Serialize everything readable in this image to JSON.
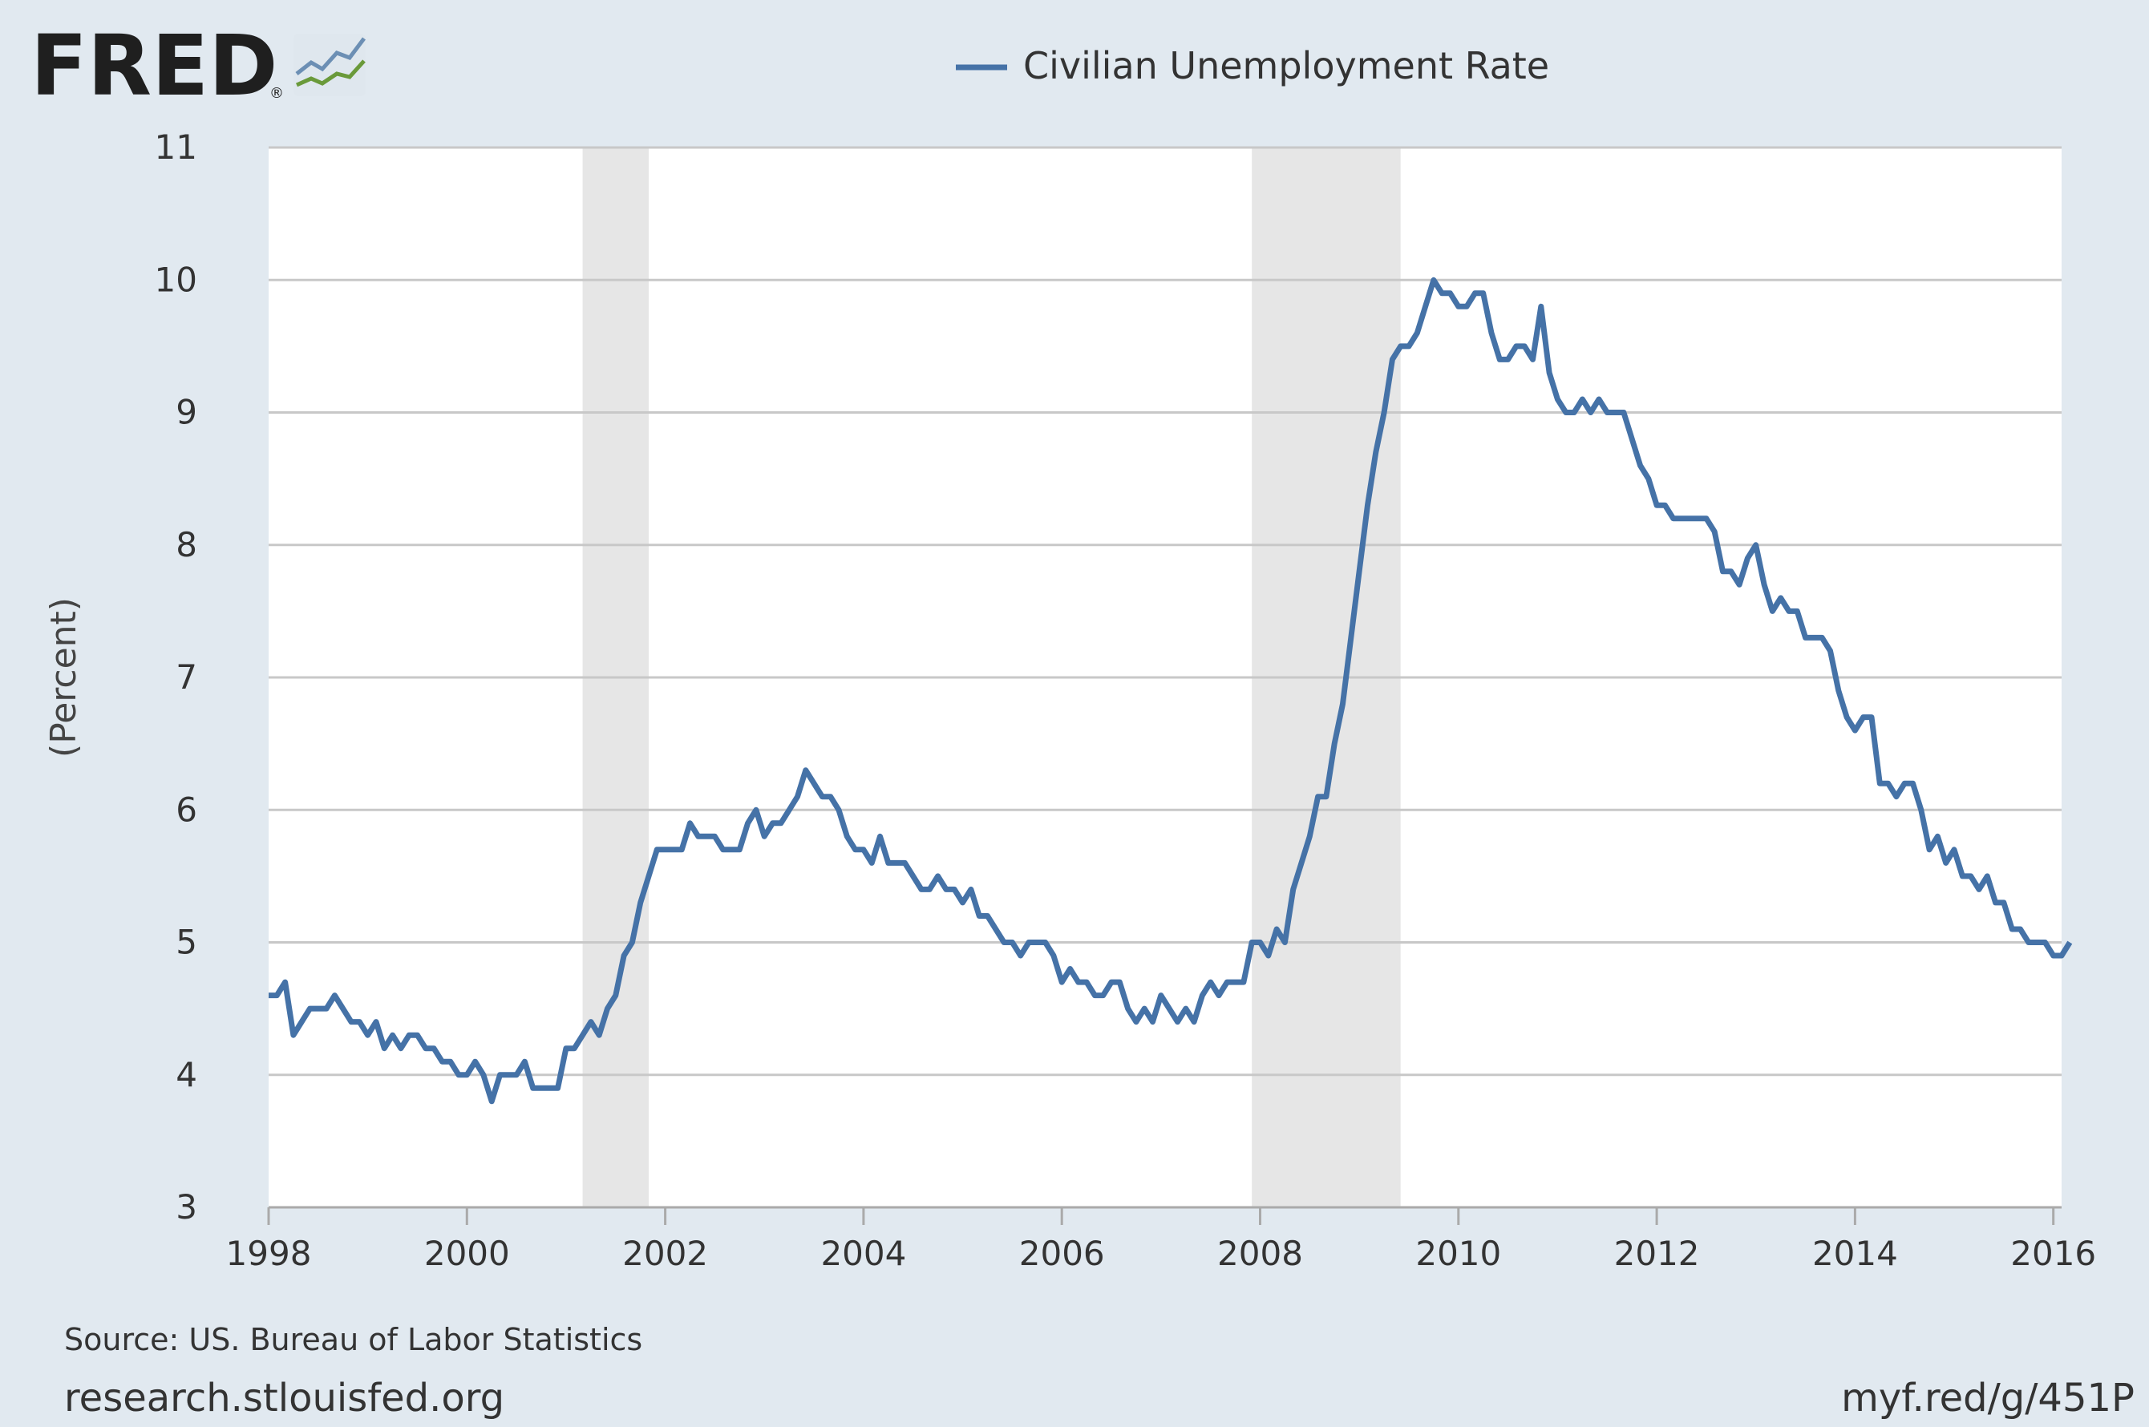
{
  "logo": {
    "text": "FRED",
    "reg_mark": "®",
    "icon": "fred-chart-logo-icon"
  },
  "legend": {
    "label": "Civilian Unemployment Rate",
    "color": "#4572a7"
  },
  "footer": {
    "source": "Source: US. Bureau of Labor Statistics",
    "site": "research.stlouisfed.org",
    "short_link": "myf.red/g/451P"
  },
  "colors": {
    "background": "#e1e9f0",
    "plot_background": "#ffffff",
    "gridline": "#c8c8c8",
    "recession": "#e6e6e6",
    "series": "#4572a7"
  },
  "chart_data": {
    "type": "line",
    "title": "",
    "xlabel": "",
    "ylabel": "(Percent)",
    "xlim": [
      "1998-01",
      "2016-02"
    ],
    "ylim": [
      3,
      11
    ],
    "grid": true,
    "legend_position": "top-center",
    "y_ticks": [
      "3",
      "4",
      "5",
      "6",
      "7",
      "8",
      "9",
      "10",
      "11"
    ],
    "x_ticks": [
      "1998",
      "2000",
      "2002",
      "2004",
      "2006",
      "2008",
      "2010",
      "2012",
      "2014",
      "2016"
    ],
    "recessions": [
      {
        "start": "2001-03",
        "end": "2001-11"
      },
      {
        "start": "2007-12",
        "end": "2009-06"
      }
    ],
    "series": [
      {
        "name": "Civilian Unemployment Rate",
        "start": "1998-01",
        "frequency": "monthly",
        "values": [
          4.6,
          4.6,
          4.7,
          4.3,
          4.4,
          4.5,
          4.5,
          4.5,
          4.6,
          4.5,
          4.4,
          4.4,
          4.3,
          4.4,
          4.2,
          4.3,
          4.2,
          4.3,
          4.3,
          4.2,
          4.2,
          4.1,
          4.1,
          4.0,
          4.0,
          4.1,
          4.0,
          3.8,
          4.0,
          4.0,
          4.0,
          4.1,
          3.9,
          3.9,
          3.9,
          3.9,
          4.2,
          4.2,
          4.3,
          4.4,
          4.3,
          4.5,
          4.6,
          4.9,
          5.0,
          5.3,
          5.5,
          5.7,
          5.7,
          5.7,
          5.7,
          5.9,
          5.8,
          5.8,
          5.8,
          5.7,
          5.7,
          5.7,
          5.9,
          6.0,
          5.8,
          5.9,
          5.9,
          6.0,
          6.1,
          6.3,
          6.2,
          6.1,
          6.1,
          6.0,
          5.8,
          5.7,
          5.7,
          5.6,
          5.8,
          5.6,
          5.6,
          5.6,
          5.5,
          5.4,
          5.4,
          5.5,
          5.4,
          5.4,
          5.3,
          5.4,
          5.2,
          5.2,
          5.1,
          5.0,
          5.0,
          4.9,
          5.0,
          5.0,
          5.0,
          4.9,
          4.7,
          4.8,
          4.7,
          4.7,
          4.6,
          4.6,
          4.7,
          4.7,
          4.5,
          4.4,
          4.5,
          4.4,
          4.6,
          4.5,
          4.4,
          4.5,
          4.4,
          4.6,
          4.7,
          4.6,
          4.7,
          4.7,
          4.7,
          5.0,
          5.0,
          4.9,
          5.1,
          5.0,
          5.4,
          5.6,
          5.8,
          6.1,
          6.1,
          6.5,
          6.8,
          7.3,
          7.8,
          8.3,
          8.7,
          9.0,
          9.4,
          9.5,
          9.5,
          9.6,
          9.8,
          10.0,
          9.9,
          9.9,
          9.8,
          9.8,
          9.9,
          9.9,
          9.6,
          9.4,
          9.4,
          9.5,
          9.5,
          9.4,
          9.8,
          9.3,
          9.1,
          9.0,
          9.0,
          9.1,
          9.0,
          9.1,
          9.0,
          9.0,
          9.0,
          8.8,
          8.6,
          8.5,
          8.3,
          8.3,
          8.2,
          8.2,
          8.2,
          8.2,
          8.2,
          8.1,
          7.8,
          7.8,
          7.7,
          7.9,
          8.0,
          7.7,
          7.5,
          7.6,
          7.5,
          7.5,
          7.3,
          7.3,
          7.3,
          7.2,
          6.9,
          6.7,
          6.6,
          6.7,
          6.7,
          6.2,
          6.2,
          6.1,
          6.2,
          6.2,
          6.0,
          5.7,
          5.8,
          5.6,
          5.7,
          5.5,
          5.5,
          5.4,
          5.5,
          5.3,
          5.3,
          5.1,
          5.1,
          5.0,
          5.0,
          5.0,
          4.9,
          4.9,
          5.0
        ]
      }
    ]
  }
}
